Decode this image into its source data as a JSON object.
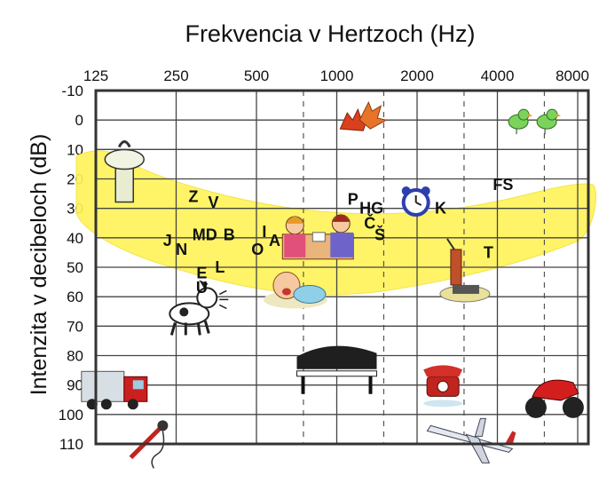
{
  "chart_data": {
    "type": "scatter",
    "title": "Frekvencia v Hertzoch (Hz)",
    "xlabel": "",
    "ylabel": "Intenzita v decibeloch (dB)",
    "x_scale": "log2",
    "x_ticks": [
      "125",
      "250",
      "500",
      "1000",
      "2000",
      "4000",
      "8000"
    ],
    "y_ticks": [
      "-10",
      "0",
      "10",
      "20",
      "30",
      "40",
      "50",
      "60",
      "70",
      "80",
      "90",
      "100",
      "110"
    ],
    "ylim": [
      -10,
      110
    ],
    "y_inverted": true,
    "speech_banana_color": "#fff35a",
    "letters": [
      {
        "label": "Z",
        "x": 290,
        "y": 26
      },
      {
        "label": "V",
        "x": 345,
        "y": 28
      },
      {
        "label": "J",
        "x": 232,
        "y": 41
      },
      {
        "label": "N",
        "x": 262,
        "y": 44
      },
      {
        "label": "MD",
        "x": 320,
        "y": 39
      },
      {
        "label": "B",
        "x": 395,
        "y": 39
      },
      {
        "label": "E",
        "x": 312,
        "y": 52
      },
      {
        "label": "L",
        "x": 365,
        "y": 50
      },
      {
        "label": "U",
        "x": 312,
        "y": 57
      },
      {
        "label": "I",
        "x": 535,
        "y": 38
      },
      {
        "label": "A",
        "x": 585,
        "y": 41
      },
      {
        "label": "O",
        "x": 505,
        "y": 44
      },
      {
        "label": "P",
        "x": 1150,
        "y": 27
      },
      {
        "label": "HG",
        "x": 1350,
        "y": 30
      },
      {
        "label": "Č",
        "x": 1330,
        "y": 35
      },
      {
        "label": "Š",
        "x": 1450,
        "y": 39
      },
      {
        "label": "K",
        "x": 2450,
        "y": 30
      },
      {
        "label": "FS",
        "x": 4200,
        "y": 22
      },
      {
        "label": "T",
        "x": 3700,
        "y": 45
      }
    ],
    "illustrations": [
      {
        "icon": "faucet-icon",
        "x": 160,
        "y": 17
      },
      {
        "icon": "leaves-icon",
        "x": 1200,
        "y": 0
      },
      {
        "icon": "birds-icon",
        "x": 5500,
        "y": 0
      },
      {
        "icon": "alarm-clock-icon",
        "x": 1980,
        "y": 28
      },
      {
        "icon": "people-talking-icon",
        "x": 850,
        "y": 40
      },
      {
        "icon": "baby-icon",
        "x": 700,
        "y": 58
      },
      {
        "icon": "dog-icon",
        "x": 280,
        "y": 64
      },
      {
        "icon": "vacuum-icon",
        "x": 2800,
        "y": 53
      },
      {
        "icon": "piano-icon",
        "x": 1000,
        "y": 84
      },
      {
        "icon": "truck-icon",
        "x": 150,
        "y": 92
      },
      {
        "icon": "telephone-icon",
        "x": 2500,
        "y": 89
      },
      {
        "icon": "motorcycle-icon",
        "x": 6500,
        "y": 94
      },
      {
        "icon": "airplane-icon",
        "x": 3200,
        "y": 108
      },
      {
        "icon": "drill-icon",
        "x": 200,
        "y": 108
      }
    ]
  }
}
